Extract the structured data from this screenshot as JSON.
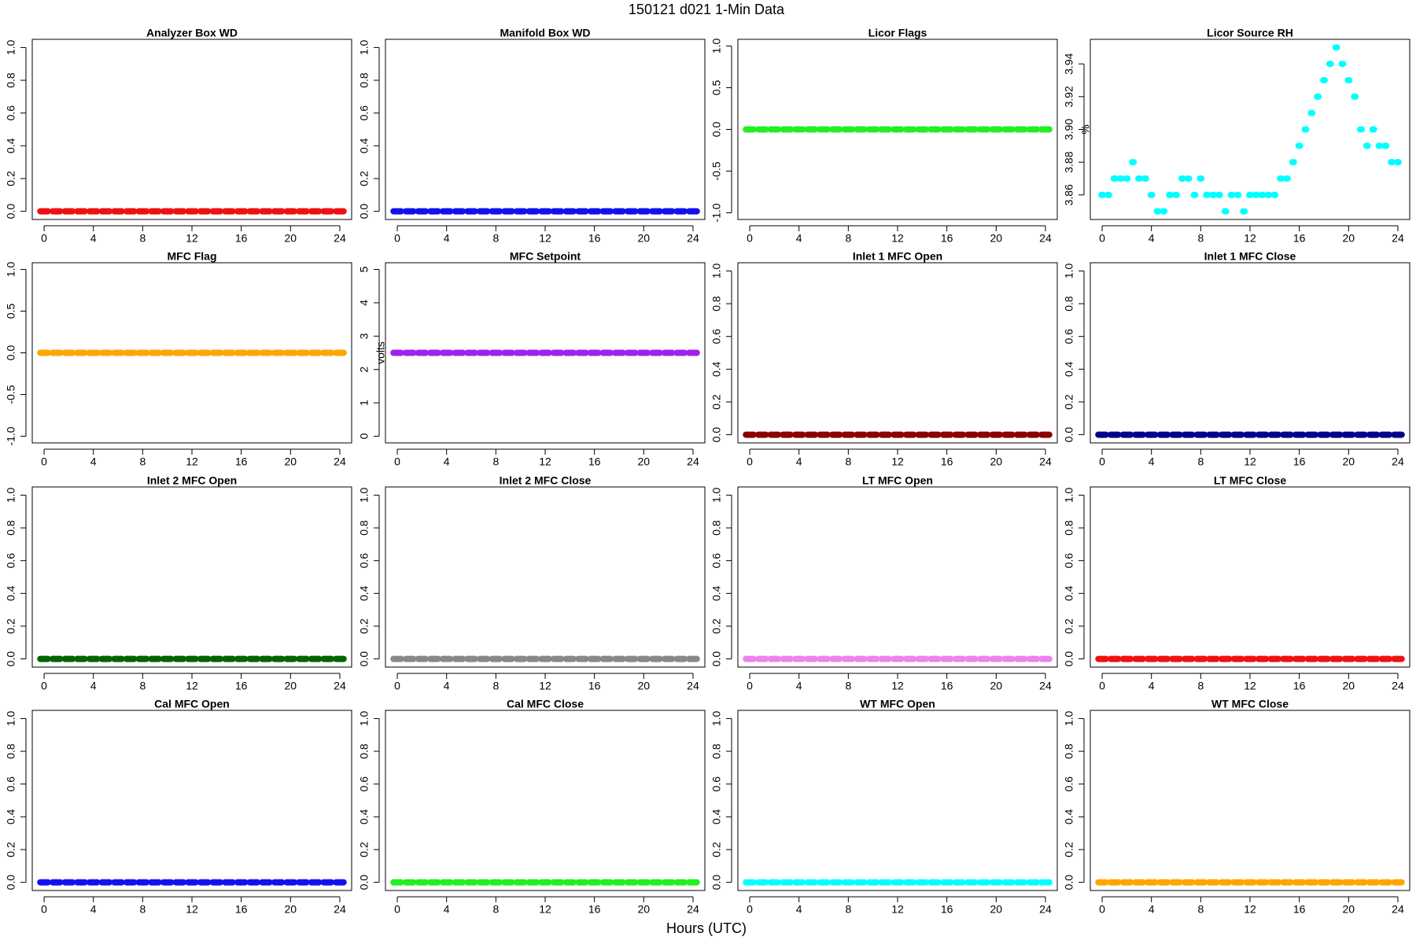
{
  "title": "150121   d021   1-Min Data",
  "xlabel": "Hours (UTC)",
  "chart_data": [
    {
      "type": "scatter",
      "title": "Analyzer Box WD",
      "color": "#ee1111",
      "x": [
        0,
        1,
        2,
        3,
        4,
        5,
        6,
        7,
        8,
        9,
        10,
        11,
        12,
        13,
        14,
        15,
        16,
        17,
        18,
        19,
        20,
        21,
        22,
        23,
        24
      ],
      "values": [
        0,
        0,
        0,
        0,
        0,
        0,
        0,
        0,
        0,
        0,
        0,
        0,
        0,
        0,
        0,
        0,
        0,
        0,
        0,
        0,
        0,
        0,
        0,
        0,
        0
      ],
      "xlim": [
        -0.96,
        24.96
      ],
      "xticks": [
        0,
        4,
        8,
        12,
        16,
        20,
        24
      ],
      "ylim": [
        -0.05,
        1.05
      ],
      "yticks": [
        {
          "value": 0,
          "label": "0.0"
        },
        0.2,
        0.4,
        0.6,
        0.8,
        {
          "value": 1,
          "label": "1.0"
        }
      ]
    },
    {
      "type": "scatter",
      "title": "Manifold Box WD",
      "color": "#1111ee",
      "x": [
        0,
        1,
        2,
        3,
        4,
        5,
        6,
        7,
        8,
        9,
        10,
        11,
        12,
        13,
        14,
        15,
        16,
        17,
        18,
        19,
        20,
        21,
        22,
        23,
        24
      ],
      "values": [
        0,
        0,
        0,
        0,
        0,
        0,
        0,
        0,
        0,
        0,
        0,
        0,
        0,
        0,
        0,
        0,
        0,
        0,
        0,
        0,
        0,
        0,
        0,
        0,
        0
      ],
      "xlim": [
        -0.96,
        24.96
      ],
      "xticks": [
        0,
        4,
        8,
        12,
        16,
        20,
        24
      ],
      "ylim": [
        -0.05,
        1.05
      ],
      "yticks": [
        {
          "value": 0,
          "label": "0.0"
        },
        0.2,
        0.4,
        0.6,
        0.8,
        {
          "value": 1,
          "label": "1.0"
        }
      ]
    },
    {
      "type": "scatter",
      "title": "Licor Flags",
      "color": "#22ee22",
      "x": [
        0,
        1,
        2,
        3,
        4,
        5,
        6,
        7,
        8,
        9,
        10,
        11,
        12,
        13,
        14,
        15,
        16,
        17,
        18,
        19,
        20,
        21,
        22,
        23,
        24
      ],
      "values": [
        0,
        0,
        0,
        0,
        0,
        0,
        0,
        0,
        0,
        0,
        0,
        0,
        0,
        0,
        0,
        0,
        0,
        0,
        0,
        0,
        0,
        0,
        0,
        0,
        0
      ],
      "xlim": [
        -0.96,
        24.96
      ],
      "xticks": [
        0,
        4,
        8,
        12,
        16,
        20,
        24
      ],
      "ylim": [
        -1.08,
        1.08
      ],
      "yticks": [
        {
          "value": -1,
          "label": "-1.0"
        },
        -0.5,
        {
          "value": 0,
          "label": "0.0"
        },
        0.5,
        {
          "value": 1,
          "label": "1.0"
        }
      ]
    },
    {
      "type": "scatter",
      "title": "Licor Source RH",
      "ylabel": "%",
      "color": "#00ffff",
      "x": [
        0,
        0.5,
        1,
        1.5,
        2,
        2.5,
        3,
        3.5,
        4,
        4.5,
        5,
        5.5,
        6,
        6.5,
        7,
        7.5,
        8,
        8.5,
        9,
        9.5,
        10,
        10.5,
        11,
        11.5,
        12,
        12.5,
        13,
        13.5,
        14,
        14.5,
        15,
        15.5,
        16,
        16.5,
        17,
        17.5,
        18,
        18.5,
        19,
        19.5,
        20,
        20.5,
        21,
        21.5,
        22,
        22.5,
        23,
        23.5,
        24
      ],
      "values": [
        3.86,
        3.86,
        3.87,
        3.87,
        3.87,
        3.88,
        3.87,
        3.87,
        3.86,
        3.85,
        3.85,
        3.86,
        3.86,
        3.87,
        3.87,
        3.86,
        3.87,
        3.86,
        3.86,
        3.86,
        3.85,
        3.86,
        3.86,
        3.85,
        3.86,
        3.86,
        3.86,
        3.86,
        3.86,
        3.87,
        3.87,
        3.88,
        3.89,
        3.9,
        3.91,
        3.92,
        3.93,
        3.94,
        3.95,
        3.94,
        3.93,
        3.92,
        3.9,
        3.89,
        3.9,
        3.89,
        3.89,
        3.88,
        3.88
      ],
      "xlim": [
        -0.96,
        24.96
      ],
      "xticks": [
        0,
        4,
        8,
        12,
        16,
        20,
        24
      ],
      "ylim": [
        3.845,
        3.955
      ],
      "yticks": [
        3.86,
        3.88,
        {
          "value": 3.9,
          "label": "3.90"
        },
        3.92,
        3.94
      ]
    },
    {
      "type": "scatter",
      "title": "MFC Flag",
      "color": "#ffa500",
      "x": [
        0,
        1,
        2,
        3,
        4,
        5,
        6,
        7,
        8,
        9,
        10,
        11,
        12,
        13,
        14,
        15,
        16,
        17,
        18,
        19,
        20,
        21,
        22,
        23,
        24
      ],
      "values": [
        0,
        0,
        0,
        0,
        0,
        0,
        0,
        0,
        0,
        0,
        0,
        0,
        0,
        0,
        0,
        0,
        0,
        0,
        0,
        0,
        0,
        0,
        0,
        0,
        0
      ],
      "xlim": [
        -0.96,
        24.96
      ],
      "xticks": [
        0,
        4,
        8,
        12,
        16,
        20,
        24
      ],
      "ylim": [
        -1.08,
        1.08
      ],
      "yticks": [
        {
          "value": -1,
          "label": "-1.0"
        },
        -0.5,
        {
          "value": 0,
          "label": "0.0"
        },
        0.5,
        {
          "value": 1,
          "label": "1.0"
        }
      ]
    },
    {
      "type": "scatter",
      "title": "MFC Setpoint",
      "ylabel": "volts",
      "color": "#a020f0",
      "x": [
        0,
        1,
        2,
        3,
        4,
        5,
        6,
        7,
        8,
        9,
        10,
        11,
        12,
        13,
        14,
        15,
        16,
        17,
        18,
        19,
        20,
        21,
        22,
        23,
        24
      ],
      "values": [
        2.5,
        2.5,
        2.5,
        2.5,
        2.5,
        2.5,
        2.5,
        2.5,
        2.5,
        2.5,
        2.5,
        2.5,
        2.5,
        2.5,
        2.5,
        2.5,
        2.5,
        2.5,
        2.5,
        2.5,
        2.5,
        2.5,
        2.5,
        2.5,
        2.5
      ],
      "xlim": [
        -0.96,
        24.96
      ],
      "xticks": [
        0,
        4,
        8,
        12,
        16,
        20,
        24
      ],
      "ylim": [
        -0.2,
        5.2
      ],
      "yticks": [
        0,
        1,
        2,
        3,
        4,
        5
      ]
    },
    {
      "type": "scatter",
      "title": "Inlet 1 MFC Open",
      "color": "#8b0000",
      "x": [
        0,
        1,
        2,
        3,
        4,
        5,
        6,
        7,
        8,
        9,
        10,
        11,
        12,
        13,
        14,
        15,
        16,
        17,
        18,
        19,
        20,
        21,
        22,
        23,
        24
      ],
      "values": [
        0,
        0,
        0,
        0,
        0,
        0,
        0,
        0,
        0,
        0,
        0,
        0,
        0,
        0,
        0,
        0,
        0,
        0,
        0,
        0,
        0,
        0,
        0,
        0,
        0
      ],
      "xlim": [
        -0.96,
        24.96
      ],
      "xticks": [
        0,
        4,
        8,
        12,
        16,
        20,
        24
      ],
      "ylim": [
        -0.05,
        1.05
      ],
      "yticks": [
        {
          "value": 0,
          "label": "0.0"
        },
        0.2,
        0.4,
        0.6,
        0.8,
        {
          "value": 1,
          "label": "1.0"
        }
      ]
    },
    {
      "type": "scatter",
      "title": "Inlet 1 MFC Close",
      "color": "#00008b",
      "x": [
        0,
        1,
        2,
        3,
        4,
        5,
        6,
        7,
        8,
        9,
        10,
        11,
        12,
        13,
        14,
        15,
        16,
        17,
        18,
        19,
        20,
        21,
        22,
        23,
        24
      ],
      "values": [
        0,
        0,
        0,
        0,
        0,
        0,
        0,
        0,
        0,
        0,
        0,
        0,
        0,
        0,
        0,
        0,
        0,
        0,
        0,
        0,
        0,
        0,
        0,
        0,
        0
      ],
      "xlim": [
        -0.96,
        24.96
      ],
      "xticks": [
        0,
        4,
        8,
        12,
        16,
        20,
        24
      ],
      "ylim": [
        -0.05,
        1.05
      ],
      "yticks": [
        {
          "value": 0,
          "label": "0.0"
        },
        0.2,
        0.4,
        0.6,
        0.8,
        {
          "value": 1,
          "label": "1.0"
        }
      ]
    },
    {
      "type": "scatter",
      "title": "Inlet 2 MFC Open",
      "color": "#006400",
      "x": [
        0,
        1,
        2,
        3,
        4,
        5,
        6,
        7,
        8,
        9,
        10,
        11,
        12,
        13,
        14,
        15,
        16,
        17,
        18,
        19,
        20,
        21,
        22,
        23,
        24
      ],
      "values": [
        0,
        0,
        0,
        0,
        0,
        0,
        0,
        0,
        0,
        0,
        0,
        0,
        0,
        0,
        0,
        0,
        0,
        0,
        0,
        0,
        0,
        0,
        0,
        0,
        0
      ],
      "xlim": [
        -0.96,
        24.96
      ],
      "xticks": [
        0,
        4,
        8,
        12,
        16,
        20,
        24
      ],
      "ylim": [
        -0.05,
        1.05
      ],
      "yticks": [
        {
          "value": 0,
          "label": "0.0"
        },
        0.2,
        0.4,
        0.6,
        0.8,
        {
          "value": 1,
          "label": "1.0"
        }
      ]
    },
    {
      "type": "scatter",
      "title": "Inlet 2 MFC Close",
      "color": "#888888",
      "x": [
        0,
        1,
        2,
        3,
        4,
        5,
        6,
        7,
        8,
        9,
        10,
        11,
        12,
        13,
        14,
        15,
        16,
        17,
        18,
        19,
        20,
        21,
        22,
        23,
        24
      ],
      "values": [
        0,
        0,
        0,
        0,
        0,
        0,
        0,
        0,
        0,
        0,
        0,
        0,
        0,
        0,
        0,
        0,
        0,
        0,
        0,
        0,
        0,
        0,
        0,
        0,
        0
      ],
      "xlim": [
        -0.96,
        24.96
      ],
      "xticks": [
        0,
        4,
        8,
        12,
        16,
        20,
        24
      ],
      "ylim": [
        -0.05,
        1.05
      ],
      "yticks": [
        {
          "value": 0,
          "label": "0.0"
        },
        0.2,
        0.4,
        0.6,
        0.8,
        {
          "value": 1,
          "label": "1.0"
        }
      ]
    },
    {
      "type": "scatter",
      "title": "LT MFC Open",
      "color": "#ee82ee",
      "x": [
        0,
        1,
        2,
        3,
        4,
        5,
        6,
        7,
        8,
        9,
        10,
        11,
        12,
        13,
        14,
        15,
        16,
        17,
        18,
        19,
        20,
        21,
        22,
        23,
        24
      ],
      "values": [
        0,
        0,
        0,
        0,
        0,
        0,
        0,
        0,
        0,
        0,
        0,
        0,
        0,
        0,
        0,
        0,
        0,
        0,
        0,
        0,
        0,
        0,
        0,
        0,
        0
      ],
      "xlim": [
        -0.96,
        24.96
      ],
      "xticks": [
        0,
        4,
        8,
        12,
        16,
        20,
        24
      ],
      "ylim": [
        -0.05,
        1.05
      ],
      "yticks": [
        {
          "value": 0,
          "label": "0.0"
        },
        0.2,
        0.4,
        0.6,
        0.8,
        {
          "value": 1,
          "label": "1.0"
        }
      ]
    },
    {
      "type": "scatter",
      "title": "LT MFC Close",
      "color": "#ee1111",
      "x": [
        0,
        1,
        2,
        3,
        4,
        5,
        6,
        7,
        8,
        9,
        10,
        11,
        12,
        13,
        14,
        15,
        16,
        17,
        18,
        19,
        20,
        21,
        22,
        23,
        24
      ],
      "values": [
        0,
        0,
        0,
        0,
        0,
        0,
        0,
        0,
        0,
        0,
        0,
        0,
        0,
        0,
        0,
        0,
        0,
        0,
        0,
        0,
        0,
        0,
        0,
        0,
        0
      ],
      "xlim": [
        -0.96,
        24.96
      ],
      "xticks": [
        0,
        4,
        8,
        12,
        16,
        20,
        24
      ],
      "ylim": [
        -0.05,
        1.05
      ],
      "yticks": [
        {
          "value": 0,
          "label": "0.0"
        },
        0.2,
        0.4,
        0.6,
        0.8,
        {
          "value": 1,
          "label": "1.0"
        }
      ]
    },
    {
      "type": "scatter",
      "title": "Cal MFC Open",
      "color": "#1111ee",
      "x": [
        0,
        1,
        2,
        3,
        4,
        5,
        6,
        7,
        8,
        9,
        10,
        11,
        12,
        13,
        14,
        15,
        16,
        17,
        18,
        19,
        20,
        21,
        22,
        23,
        24
      ],
      "values": [
        0,
        0,
        0,
        0,
        0,
        0,
        0,
        0,
        0,
        0,
        0,
        0,
        0,
        0,
        0,
        0,
        0,
        0,
        0,
        0,
        0,
        0,
        0,
        0,
        0
      ],
      "xlim": [
        -0.96,
        24.96
      ],
      "xticks": [
        0,
        4,
        8,
        12,
        16,
        20,
        24
      ],
      "ylim": [
        -0.05,
        1.05
      ],
      "yticks": [
        {
          "value": 0,
          "label": "0.0"
        },
        0.2,
        0.4,
        0.6,
        0.8,
        {
          "value": 1,
          "label": "1.0"
        }
      ]
    },
    {
      "type": "scatter",
      "title": "Cal MFC Close",
      "color": "#22ee22",
      "x": [
        0,
        1,
        2,
        3,
        4,
        5,
        6,
        7,
        8,
        9,
        10,
        11,
        12,
        13,
        14,
        15,
        16,
        17,
        18,
        19,
        20,
        21,
        22,
        23,
        24
      ],
      "values": [
        0,
        0,
        0,
        0,
        0,
        0,
        0,
        0,
        0,
        0,
        0,
        0,
        0,
        0,
        0,
        0,
        0,
        0,
        0,
        0,
        0,
        0,
        0,
        0,
        0
      ],
      "xlim": [
        -0.96,
        24.96
      ],
      "xticks": [
        0,
        4,
        8,
        12,
        16,
        20,
        24
      ],
      "ylim": [
        -0.05,
        1.05
      ],
      "yticks": [
        {
          "value": 0,
          "label": "0.0"
        },
        0.2,
        0.4,
        0.6,
        0.8,
        {
          "value": 1,
          "label": "1.0"
        }
      ]
    },
    {
      "type": "scatter",
      "title": "WT MFC Open",
      "color": "#00ffff",
      "x": [
        0,
        1,
        2,
        3,
        4,
        5,
        6,
        7,
        8,
        9,
        10,
        11,
        12,
        13,
        14,
        15,
        16,
        17,
        18,
        19,
        20,
        21,
        22,
        23,
        24
      ],
      "values": [
        0,
        0,
        0,
        0,
        0,
        0,
        0,
        0,
        0,
        0,
        0,
        0,
        0,
        0,
        0,
        0,
        0,
        0,
        0,
        0,
        0,
        0,
        0,
        0,
        0
      ],
      "xlim": [
        -0.96,
        24.96
      ],
      "xticks": [
        0,
        4,
        8,
        12,
        16,
        20,
        24
      ],
      "ylim": [
        -0.05,
        1.05
      ],
      "yticks": [
        {
          "value": 0,
          "label": "0.0"
        },
        0.2,
        0.4,
        0.6,
        0.8,
        {
          "value": 1,
          "label": "1.0"
        }
      ]
    },
    {
      "type": "scatter",
      "title": "WT MFC Close",
      "color": "#ffa500",
      "x": [
        0,
        1,
        2,
        3,
        4,
        5,
        6,
        7,
        8,
        9,
        10,
        11,
        12,
        13,
        14,
        15,
        16,
        17,
        18,
        19,
        20,
        21,
        22,
        23,
        24
      ],
      "values": [
        0,
        0,
        0,
        0,
        0,
        0,
        0,
        0,
        0,
        0,
        0,
        0,
        0,
        0,
        0,
        0,
        0,
        0,
        0,
        0,
        0,
        0,
        0,
        0,
        0
      ],
      "xlim": [
        -0.96,
        24.96
      ],
      "xticks": [
        0,
        4,
        8,
        12,
        16,
        20,
        24
      ],
      "ylim": [
        -0.05,
        1.05
      ],
      "yticks": [
        {
          "value": 0,
          "label": "0.0"
        },
        0.2,
        0.4,
        0.6,
        0.8,
        {
          "value": 1,
          "label": "1.0"
        }
      ]
    }
  ]
}
